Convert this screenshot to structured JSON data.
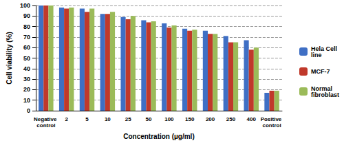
{
  "chart_data": {
    "type": "bar",
    "xlabel": "Concentration (µg/ml)",
    "ylabel": "Cell viability (%)",
    "categories": [
      "Negative control",
      "2",
      "5",
      "10",
      "25",
      "50",
      "100",
      "150",
      "200",
      "250",
      "400",
      "Positive control"
    ],
    "series": [
      {
        "name": "Hela Cell line",
        "color": "#3f6fc4",
        "values": [
          100,
          98,
          97,
          92,
          89,
          86,
          83,
          78,
          76,
          71,
          67,
          17
        ]
      },
      {
        "name": "MCF-7",
        "color": "#c0392b",
        "values": [
          100,
          97,
          94,
          92,
          87,
          84,
          79,
          76,
          73,
          65,
          58,
          19
        ]
      },
      {
        "name": "Normal fibroblast",
        "color": "#9bbb59",
        "values": [
          100,
          98,
          97,
          94,
          90,
          85,
          81,
          77,
          73,
          65,
          60,
          19
        ]
      }
    ],
    "ylim": [
      0,
      100
    ],
    "yticks": [
      0,
      10,
      20,
      30,
      40,
      50,
      60,
      70,
      80,
      90,
      100
    ],
    "grid": true,
    "legend": "right"
  }
}
